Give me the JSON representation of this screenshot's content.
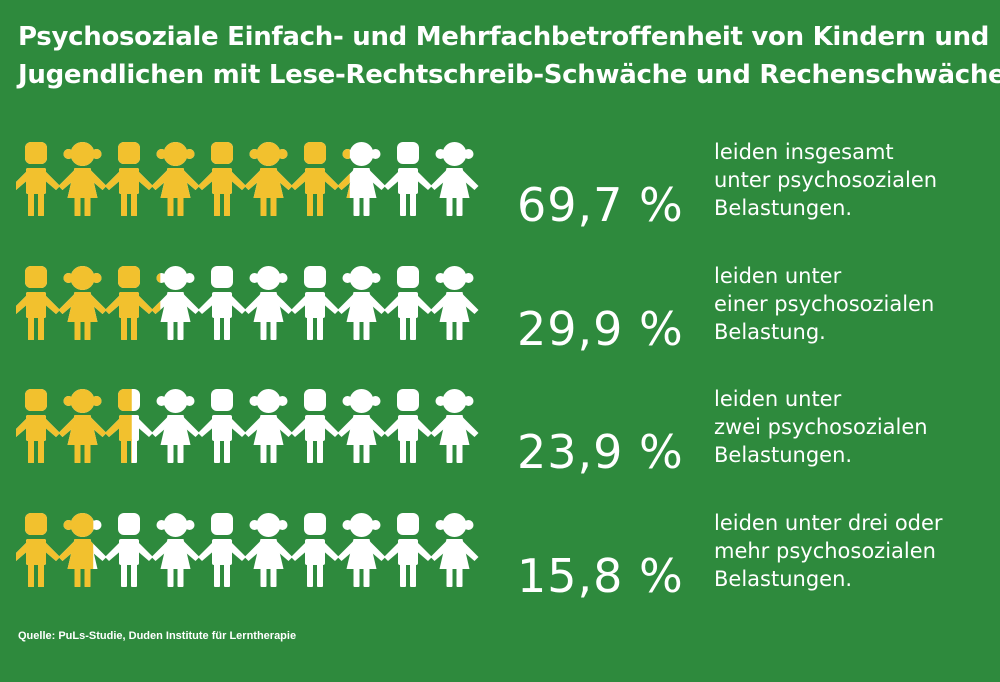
{
  "title": {
    "line1": "Psychosoziale Einfach- und Mehrfachbetroffenheit von Kindern und",
    "line2": "Jugendlichen mit Lese-Rechtschreib-Schwäche und Rechenschwäche"
  },
  "colors": {
    "background": "#2e8a3d",
    "highlight": "#f2c12e",
    "neutral": "#ffffff"
  },
  "figure_types": [
    "boy",
    "girl",
    "boy",
    "girl",
    "boy",
    "girl",
    "boy",
    "girl",
    "boy",
    "girl"
  ],
  "rows": [
    {
      "value": 69.7,
      "percent_label": "69,7 %",
      "desc": [
        "leiden insgesamt",
        "unter psychosozialen",
        "Belastungen."
      ]
    },
    {
      "value": 29.9,
      "percent_label": "29,9 %",
      "desc": [
        "leiden unter",
        "einer psychosozialen",
        "Belastung."
      ]
    },
    {
      "value": 23.9,
      "percent_label": "23,9 %",
      "desc": [
        "leiden unter",
        "zwei psychosozialen",
        "Belastungen."
      ]
    },
    {
      "value": 15.8,
      "percent_label": "15,8 %",
      "desc": [
        "leiden unter drei oder",
        "mehr psychosozialen",
        "Belastungen."
      ]
    }
  ],
  "source": "Quelle: PuLs-Studie, Duden Institute für Lerntherapie"
}
